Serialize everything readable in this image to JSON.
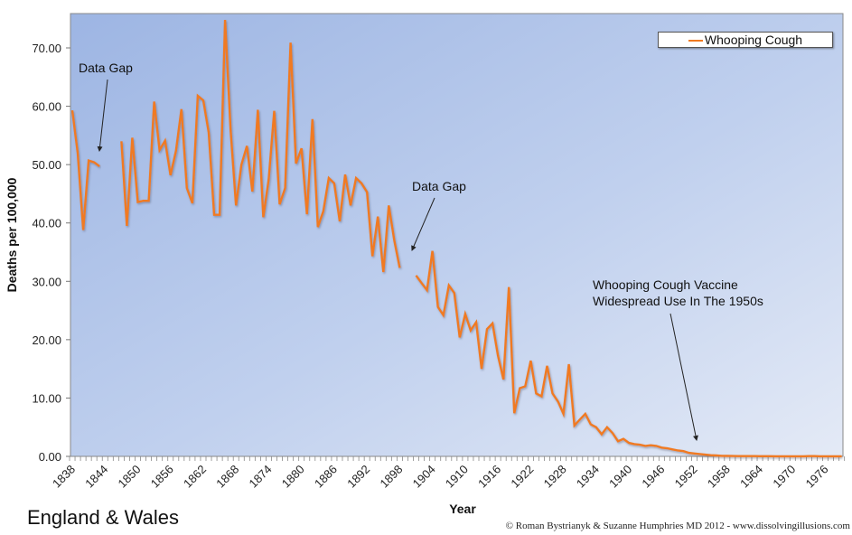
{
  "chart_data": {
    "type": "line",
    "title": "",
    "xlabel": "Year",
    "ylabel": "Deaths per 100,000",
    "ylim": [
      0,
      75
    ],
    "xlim": [
      1838,
      1979
    ],
    "grid": false,
    "legend_position": "top-right",
    "yticks": [
      "0.00",
      "10.00",
      "20.00",
      "30.00",
      "40.00",
      "50.00",
      "60.00",
      "70.00"
    ],
    "ytick_values": [
      0,
      10,
      20,
      30,
      40,
      50,
      60,
      70
    ],
    "xticks": [
      "1838",
      "1844",
      "1850",
      "1856",
      "1862",
      "1868",
      "1874",
      "1880",
      "1886",
      "1892",
      "1898",
      "1904",
      "1910",
      "1916",
      "1922",
      "1928",
      "1934",
      "1940",
      "1946",
      "1952",
      "1958",
      "1964",
      "1970",
      "1976"
    ],
    "series": [
      {
        "name": "Whooping Cough",
        "color": "#f07a22",
        "segments": [
          {
            "x": [
              1838,
              1839,
              1840,
              1841,
              1842,
              1843
            ],
            "y": [
              59.3,
              52.0,
              38.8,
              50.7,
              50.4,
              49.7
            ]
          },
          {
            "x": [
              1847,
              1848,
              1849,
              1850,
              1851,
              1852,
              1853,
              1854,
              1855,
              1856,
              1857,
              1858,
              1859,
              1860,
              1861,
              1862,
              1863,
              1864,
              1865,
              1866,
              1867,
              1868,
              1869,
              1870,
              1871,
              1872,
              1873,
              1874,
              1875,
              1876,
              1877,
              1878,
              1879,
              1880,
              1881,
              1882,
              1883,
              1884,
              1885,
              1886,
              1887,
              1888,
              1889,
              1890,
              1891,
              1892,
              1893,
              1894,
              1895,
              1896,
              1897,
              1898
            ],
            "y": [
              54.0,
              39.5,
              54.6,
              43.6,
              43.8,
              43.8,
              60.8,
              52.5,
              54.1,
              48.2,
              52.4,
              59.5,
              46.0,
              43.4,
              61.8,
              61.0,
              55.5,
              41.4,
              41.4,
              74.8,
              56.0,
              43.0,
              50.0,
              53.2,
              45.4,
              59.4,
              41.0,
              47.5,
              59.2,
              43.2,
              46.0,
              70.9,
              50.2,
              52.8,
              41.5,
              57.8,
              39.3,
              42.0,
              47.7,
              46.8,
              40.3,
              48.3,
              43.0,
              47.7,
              46.8,
              45.3,
              34.3,
              41.1,
              31.6,
              43.0,
              37.0,
              32.3
            ]
          },
          {
            "x": [
              1901,
              1902,
              1903,
              1904,
              1905,
              1906,
              1907,
              1908,
              1909,
              1910,
              1911,
              1912,
              1913,
              1914,
              1915,
              1916,
              1917,
              1918,
              1919,
              1920,
              1921,
              1922,
              1923,
              1924,
              1925,
              1926,
              1927,
              1928,
              1929,
              1930,
              1931,
              1932,
              1933,
              1934,
              1935,
              1936,
              1937,
              1938,
              1939,
              1940,
              1941,
              1942,
              1943,
              1944,
              1945,
              1946,
              1947,
              1948,
              1949,
              1950,
              1951,
              1952,
              1953,
              1954,
              1955,
              1956,
              1957,
              1958,
              1959,
              1960,
              1961,
              1962,
              1963,
              1964,
              1965,
              1966,
              1967,
              1968,
              1969,
              1970,
              1971,
              1972,
              1973,
              1974,
              1975,
              1976,
              1977,
              1978,
              1979
            ],
            "y": [
              31.0,
              29.7,
              28.5,
              35.2,
              25.6,
              24.2,
              29.3,
              28.0,
              20.4,
              24.4,
              21.6,
              23.0,
              15.0,
              21.8,
              22.8,
              17.3,
              13.2,
              29.0,
              7.4,
              11.7,
              12.0,
              16.4,
              10.8,
              10.3,
              15.5,
              10.8,
              9.4,
              7.3,
              15.8,
              5.3,
              6.3,
              7.3,
              5.5,
              5.0,
              3.8,
              5.0,
              4.0,
              2.6,
              3.0,
              2.3,
              2.1,
              2.0,
              1.8,
              1.9,
              1.8,
              1.5,
              1.4,
              1.2,
              1.0,
              0.9,
              0.6,
              0.5,
              0.4,
              0.3,
              0.2,
              0.15,
              0.1,
              0.08,
              0.06,
              0.05,
              0.05,
              0.04,
              0.04,
              0.03,
              0.03,
              0.03,
              0.02,
              0.02,
              0.02,
              0.02,
              0.02,
              0.02,
              0.05,
              0.05,
              0.02,
              0.01,
              0.01,
              0.01,
              0.01
            ]
          }
        ]
      }
    ],
    "annotations": [
      {
        "text": "Data Gap",
        "id": "gap1",
        "target_year": 1843,
        "target_value": 52
      },
      {
        "text": "Data Gap",
        "id": "gap2",
        "target_year": 1900,
        "target_value": 35
      },
      {
        "text_lines": [
          "Whooping Cough Vaccine",
          "Widespread Use In The 1950s"
        ],
        "id": "vaccine",
        "target_year": 1953,
        "target_value": 2.5
      }
    ]
  },
  "legend": {
    "label": "Whooping Cough"
  },
  "footer": {
    "region": "England & Wales",
    "credit": "© Roman Bystrianyk & Suzanne Humphries MD 2012 - www.dissolvingillusions.com"
  }
}
